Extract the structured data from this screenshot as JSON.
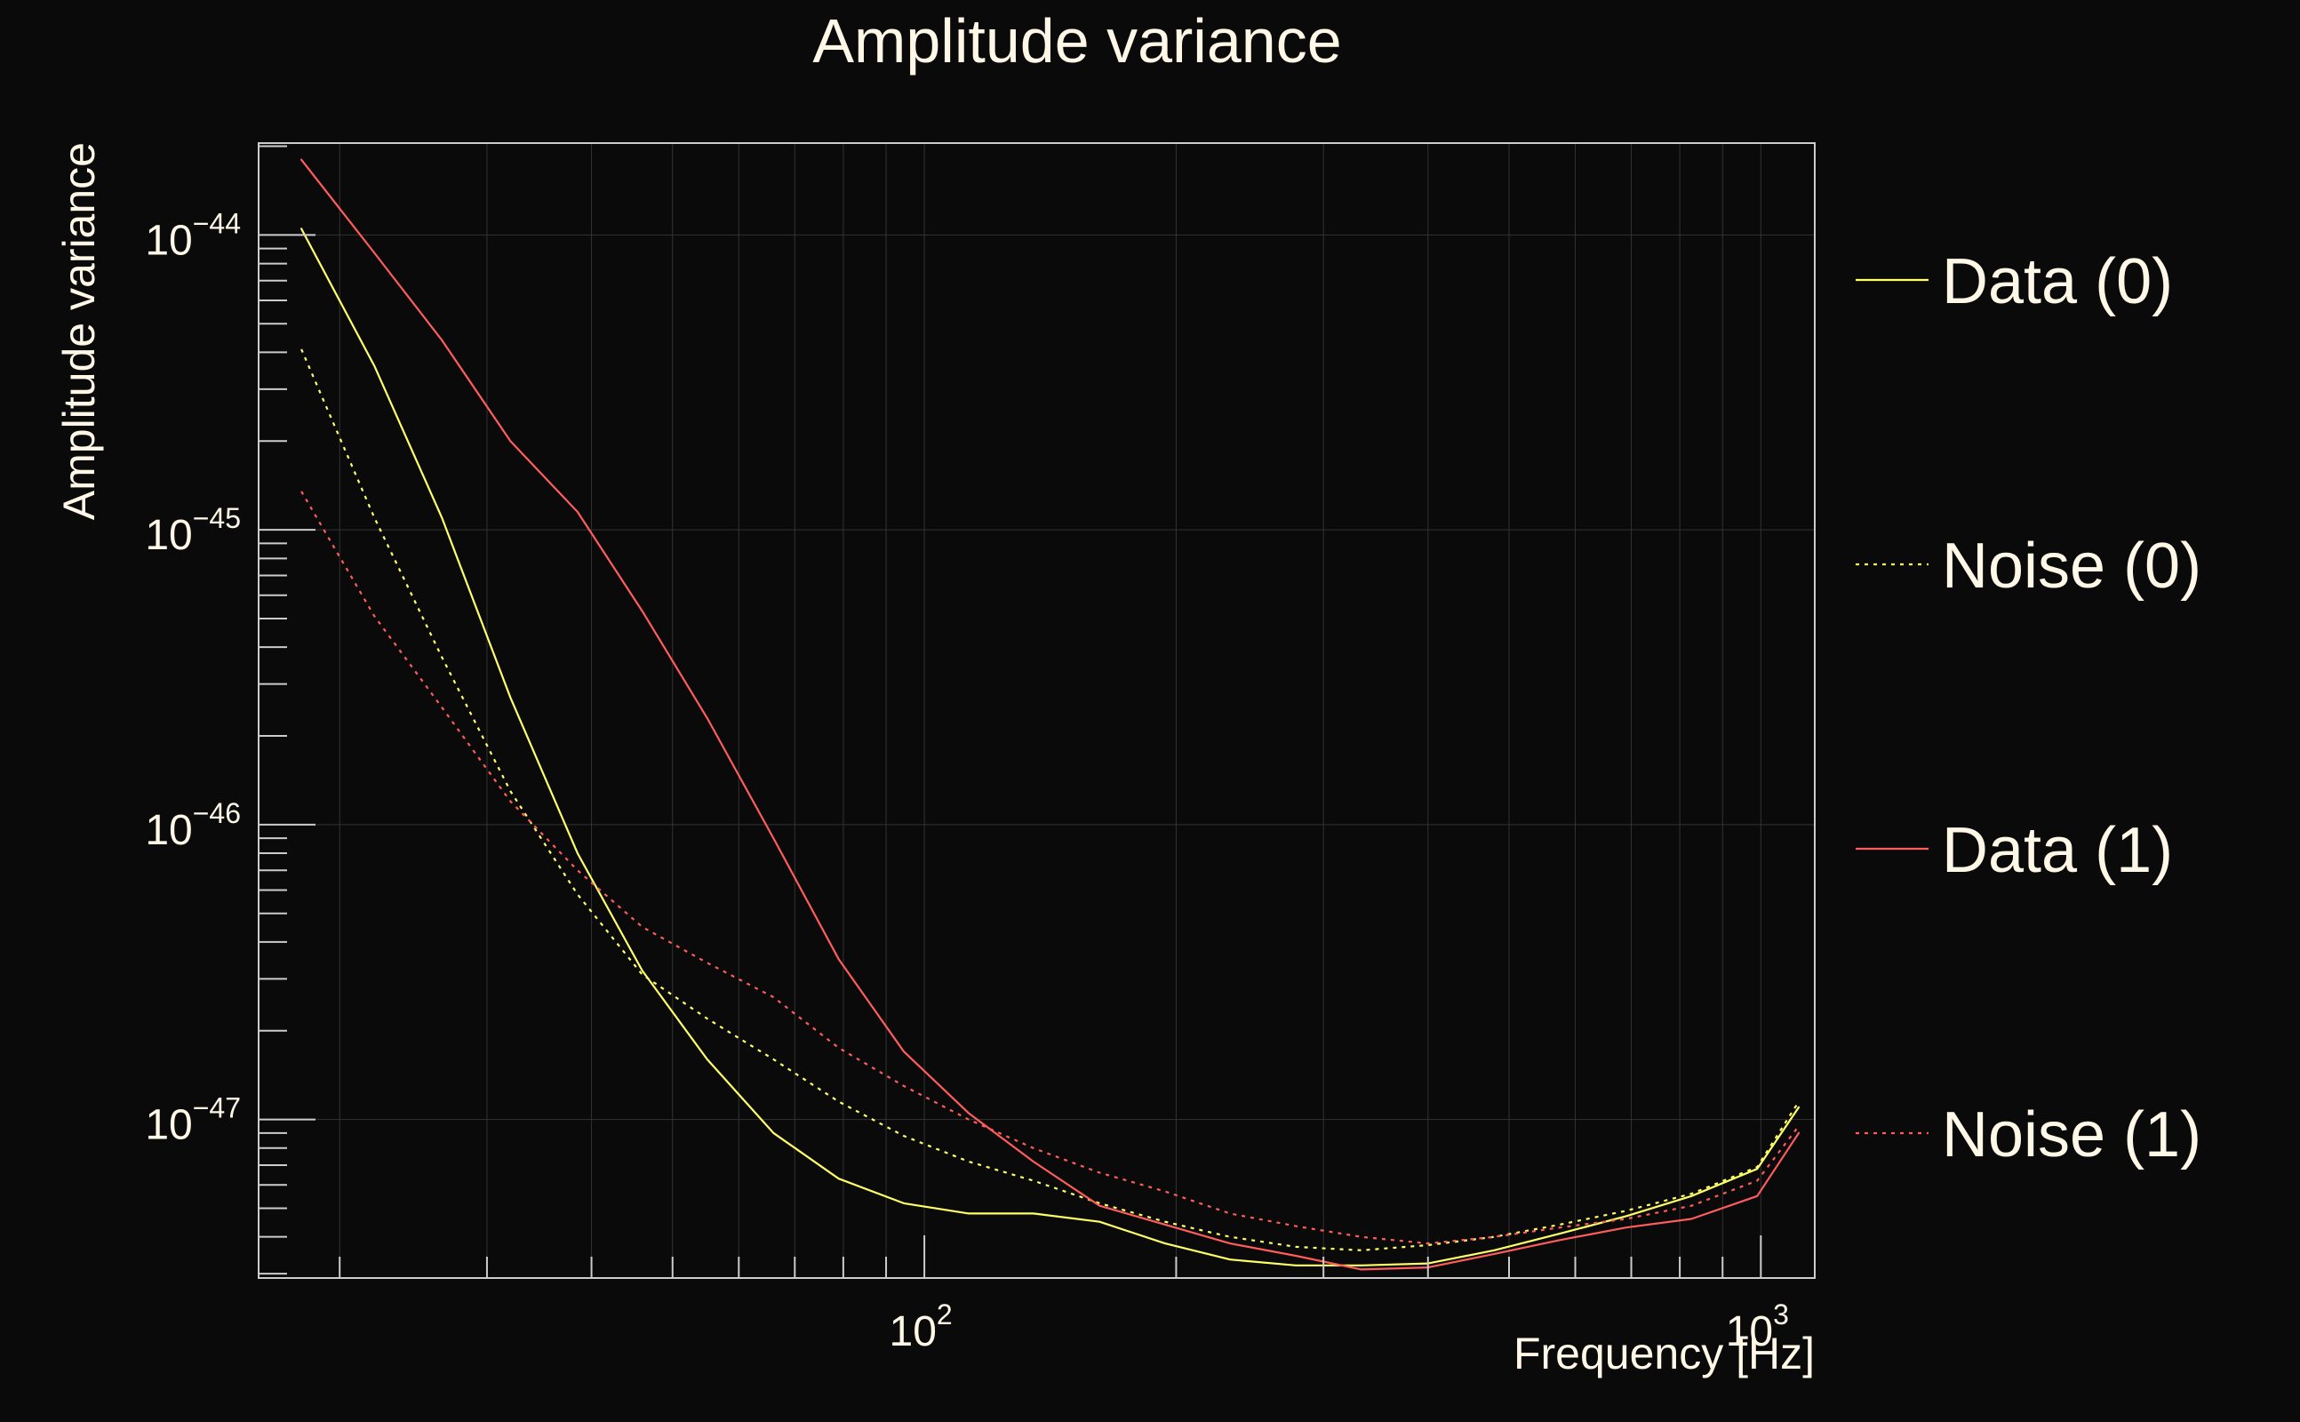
{
  "chart_data": {
    "type": "line",
    "title": "Amplitude variance",
    "xlabel": "Frequency [Hz]",
    "ylabel": "Amplitude variance",
    "xscale": "log",
    "yscale": "log",
    "xlim": [
      16,
      1160
    ],
    "ylim": [
      2.9e-48,
      2.05e-44
    ],
    "grid": true,
    "legend_position": "right",
    "frame_color": "#cccccc",
    "grid_color": "#333333",
    "x_ticks": [
      {
        "value": 100,
        "base": "10",
        "exp": "2"
      },
      {
        "value": 1000,
        "base": "10",
        "exp": "3"
      }
    ],
    "y_ticks": [
      {
        "value": 1e-44,
        "base": "10",
        "exp": "−44"
      },
      {
        "value": 1e-45,
        "base": "10",
        "exp": "−45"
      },
      {
        "value": 1e-46,
        "base": "10",
        "exp": "−46"
      },
      {
        "value": 1e-47,
        "base": "10",
        "exp": "−47"
      }
    ],
    "x": [
      18,
      22,
      26.5,
      32,
      38.5,
      46,
      55,
      66,
      79,
      94.5,
      113,
      135,
      162,
      194,
      232,
      278,
      333,
      400,
      480,
      575,
      690,
      826,
      990,
      1110
    ],
    "series": [
      {
        "name": "Data (0)",
        "color": "#ffff66",
        "dash": "solid",
        "values": [
          1.05e-44,
          3.6e-45,
          1.1e-45,
          2.7e-46,
          8e-47,
          3.2e-47,
          1.6e-47,
          9e-48,
          6.3e-48,
          5.2e-48,
          4.8e-48,
          4.8e-48,
          4.5e-48,
          3.8e-48,
          3.35e-48,
          3.2e-48,
          3.2e-48,
          3.25e-48,
          3.6e-48,
          4.1e-48,
          4.7e-48,
          5.5e-48,
          6.8e-48,
          1.1e-47
        ]
      },
      {
        "name": "Noise (0)",
        "color": "#ffff66",
        "dash": "dotted",
        "values": [
          4.1e-45,
          1.1e-45,
          3.7e-46,
          1.3e-46,
          5.8e-47,
          3.1e-47,
          2.2e-47,
          1.6e-47,
          1.15e-47,
          8.8e-48,
          7.2e-48,
          6.2e-48,
          5.2e-48,
          4.5e-48,
          4e-48,
          3.7e-48,
          3.6e-48,
          3.75e-48,
          4e-48,
          4.4e-48,
          4.9e-48,
          5.6e-48,
          6.9e-48,
          1.15e-47
        ]
      },
      {
        "name": "Data (1)",
        "color": "#ff5c5c",
        "dash": "solid",
        "values": [
          1.8e-44,
          8.7e-45,
          4.4e-45,
          2e-45,
          1.15e-45,
          5.3e-46,
          2.3e-46,
          9e-47,
          3.5e-47,
          1.7e-47,
          1.05e-47,
          7.2e-48,
          5.1e-48,
          4.4e-48,
          3.8e-48,
          3.45e-48,
          3.1e-48,
          3.15e-48,
          3.5e-48,
          3.9e-48,
          4.3e-48,
          4.6e-48,
          5.5e-48,
          9e-48
        ]
      },
      {
        "name": "Noise (1)",
        "color": "#ff5c5c",
        "dash": "dotted",
        "values": [
          1.35e-45,
          5.1e-46,
          2.5e-46,
          1.2e-46,
          7e-47,
          4.5e-47,
          3.4e-47,
          2.6e-47,
          1.75e-47,
          1.3e-47,
          1e-47,
          8e-48,
          6.6e-48,
          5.7e-48,
          4.8e-48,
          4.35e-48,
          4e-48,
          3.8e-48,
          4e-48,
          4.3e-48,
          4.6e-48,
          5.1e-48,
          6.2e-48,
          9.5e-48
        ]
      }
    ]
  }
}
